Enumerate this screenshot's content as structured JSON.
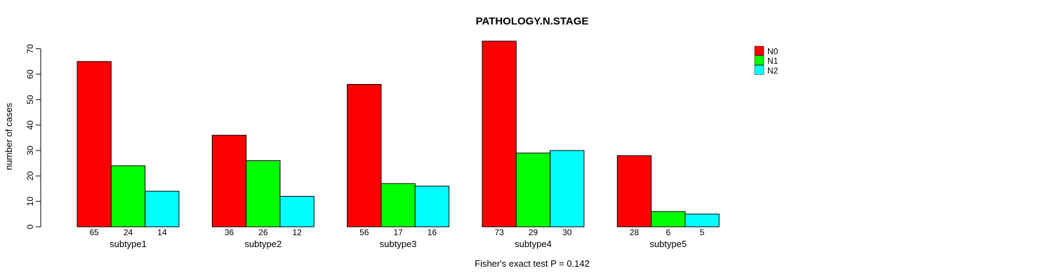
{
  "title": "PATHOLOGY.N.STAGE",
  "footnote": "Fisher's exact test P = 0.142",
  "chart_data": {
    "type": "bar",
    "title": "PATHOLOGY.N.STAGE",
    "xlabel": "",
    "ylabel": "number of cases",
    "categories": [
      "subtype1",
      "subtype2",
      "subtype3",
      "subtype4",
      "subtype5"
    ],
    "series": [
      {
        "name": "N0",
        "color": "#ff0000",
        "values": [
          65,
          36,
          56,
          73,
          28
        ]
      },
      {
        "name": "N1",
        "color": "#00ff00",
        "values": [
          24,
          26,
          17,
          29,
          6
        ]
      },
      {
        "name": "N2",
        "color": "#00ffff",
        "values": [
          14,
          12,
          16,
          30,
          5
        ]
      }
    ],
    "yticks": [
      0,
      10,
      20,
      30,
      40,
      50,
      60,
      70
    ],
    "ylim": [
      0,
      73
    ],
    "grid": false,
    "value_labels": true,
    "bar_border_color": "#000000",
    "legend_position": "top-right",
    "annotation": "Fisher's exact test P = 0.142"
  }
}
